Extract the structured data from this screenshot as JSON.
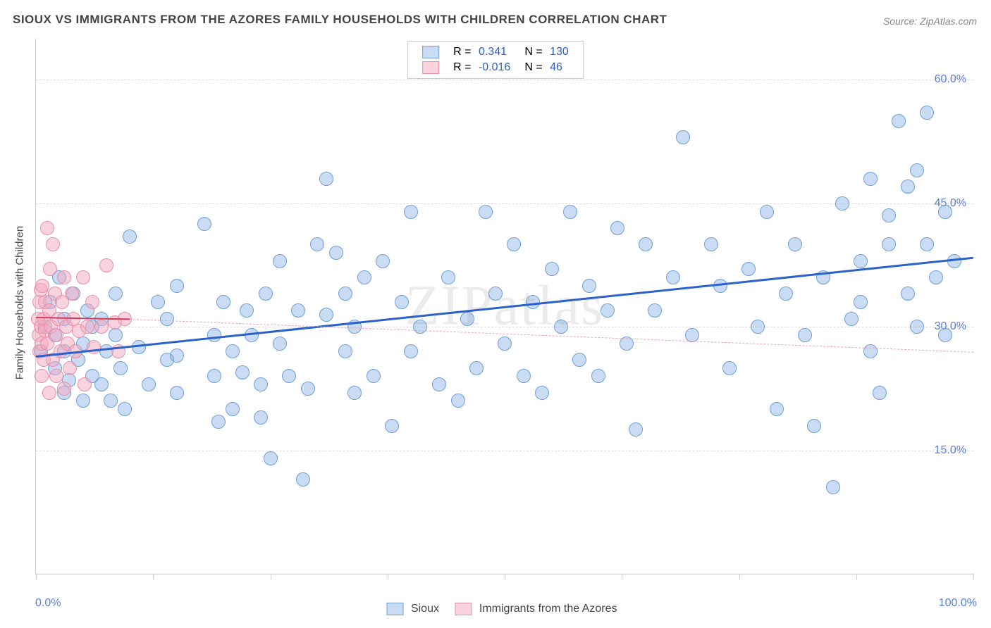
{
  "title": "SIOUX VS IMMIGRANTS FROM THE AZORES FAMILY HOUSEHOLDS WITH CHILDREN CORRELATION CHART",
  "source": "Source: ZipAtlas.com",
  "watermark": "ZIPatlas",
  "ylabel": "Family Households with Children",
  "chart": {
    "type": "scatter",
    "background_color": "#ffffff",
    "grid_color": "#dddddd",
    "border_color": "#cccccc",
    "xlim": [
      0,
      100
    ],
    "ylim": [
      0,
      65
    ],
    "xtick_positions": [
      0,
      12.5,
      25,
      37.5,
      50,
      62.5,
      75,
      87.5,
      100
    ],
    "xtick_labels": {
      "0": "0.0%",
      "100": "100.0%"
    },
    "ytick_positions": [
      15,
      30,
      45,
      60
    ],
    "ytick_labels": {
      "15": "15.0%",
      "30": "30.0%",
      "45": "45.0%",
      "60": "60.0%"
    },
    "tick_label_color": "#5a7fd6",
    "tick_fontsize": 16,
    "axis_label_color": "#444444",
    "axis_label_fontsize": 15,
    "marker_radius": 9,
    "marker_border_width": 1,
    "series": [
      {
        "name": "Sioux",
        "fill_color": "rgba(138,178,230,0.45)",
        "border_color": "#6f9fd8",
        "R": "0.341",
        "N": "130",
        "trend": {
          "x1": 0,
          "y1": 26.5,
          "x2": 100,
          "y2": 38.5,
          "color": "#2a62c9",
          "width": 3,
          "dash": false
        },
        "points": [
          [
            0.5,
            27
          ],
          [
            1,
            30
          ],
          [
            1.5,
            33
          ],
          [
            2,
            25
          ],
          [
            2,
            29
          ],
          [
            2.5,
            36
          ],
          [
            3,
            22
          ],
          [
            3,
            31
          ],
          [
            3.5,
            23.5
          ],
          [
            3,
            27
          ],
          [
            4,
            34
          ],
          [
            4.5,
            26
          ],
          [
            5,
            28
          ],
          [
            5,
            21
          ],
          [
            5.5,
            32
          ],
          [
            6,
            24
          ],
          [
            6,
            30
          ],
          [
            7,
            23
          ],
          [
            7,
            31
          ],
          [
            7.5,
            27
          ],
          [
            8,
            21
          ],
          [
            8.5,
            34
          ],
          [
            8.5,
            29
          ],
          [
            9,
            25
          ],
          [
            9.5,
            20
          ],
          [
            10,
            41
          ],
          [
            11,
            27.5
          ],
          [
            12,
            23
          ],
          [
            13,
            33
          ],
          [
            14,
            26
          ],
          [
            14,
            31
          ],
          [
            15,
            22
          ],
          [
            15,
            35
          ],
          [
            15,
            26.5
          ],
          [
            18,
            42.5
          ],
          [
            19,
            29
          ],
          [
            19,
            24
          ],
          [
            19.5,
            18.5
          ],
          [
            20,
            33
          ],
          [
            21,
            27
          ],
          [
            21,
            20
          ],
          [
            22,
            24.5
          ],
          [
            22.5,
            32
          ],
          [
            23,
            29
          ],
          [
            24,
            23
          ],
          [
            24,
            19
          ],
          [
            24.5,
            34
          ],
          [
            25,
            14
          ],
          [
            26,
            28
          ],
          [
            26,
            38
          ],
          [
            27,
            24
          ],
          [
            28,
            32
          ],
          [
            28.5,
            11.5
          ],
          [
            29,
            22.5
          ],
          [
            30,
            40
          ],
          [
            31,
            31.5
          ],
          [
            31,
            48
          ],
          [
            32,
            39
          ],
          [
            33,
            34
          ],
          [
            33,
            27
          ],
          [
            34,
            22
          ],
          [
            34,
            30
          ],
          [
            35,
            36
          ],
          [
            36,
            24
          ],
          [
            37,
            38
          ],
          [
            38,
            18
          ],
          [
            39,
            33
          ],
          [
            40,
            44
          ],
          [
            40,
            27
          ],
          [
            41,
            30
          ],
          [
            43,
            23
          ],
          [
            44,
            36
          ],
          [
            45,
            21
          ],
          [
            46,
            31
          ],
          [
            47,
            25
          ],
          [
            48,
            44
          ],
          [
            49,
            34
          ],
          [
            50,
            28
          ],
          [
            51,
            40
          ],
          [
            52,
            24
          ],
          [
            53,
            33
          ],
          [
            54,
            22
          ],
          [
            55,
            37
          ],
          [
            56,
            30
          ],
          [
            57,
            44
          ],
          [
            58,
            26
          ],
          [
            59,
            35
          ],
          [
            60,
            24
          ],
          [
            61,
            32
          ],
          [
            62,
            42
          ],
          [
            63,
            28
          ],
          [
            64,
            17.5
          ],
          [
            65,
            40
          ],
          [
            66,
            32
          ],
          [
            68,
            36
          ],
          [
            69,
            53
          ],
          [
            70,
            29
          ],
          [
            72,
            40
          ],
          [
            73,
            35
          ],
          [
            74,
            25
          ],
          [
            76,
            37
          ],
          [
            77,
            30
          ],
          [
            78,
            44
          ],
          [
            79,
            20
          ],
          [
            80,
            34
          ],
          [
            81,
            40
          ],
          [
            82,
            29
          ],
          [
            83,
            18
          ],
          [
            84,
            36
          ],
          [
            85,
            10.5
          ],
          [
            86,
            45
          ],
          [
            87,
            31
          ],
          [
            88,
            38
          ],
          [
            88,
            33
          ],
          [
            89,
            27
          ],
          [
            89,
            48
          ],
          [
            90,
            22
          ],
          [
            91,
            40
          ],
          [
            91,
            43.5
          ],
          [
            92,
            55
          ],
          [
            93,
            34
          ],
          [
            93,
            47
          ],
          [
            94,
            30
          ],
          [
            94,
            49
          ],
          [
            95,
            56
          ],
          [
            95,
            40
          ],
          [
            96,
            36
          ],
          [
            97,
            44
          ],
          [
            97,
            29
          ],
          [
            98,
            38
          ]
        ]
      },
      {
        "name": "Immigrants from the Azores",
        "fill_color": "rgba(244,168,190,0.5)",
        "border_color": "#e88fa8",
        "R": "-0.016",
        "N": "46",
        "trend_solid": {
          "x1": 0,
          "y1": 31.2,
          "x2": 10,
          "y2": 31.0,
          "color": "#d23b5a",
          "width": 2,
          "dash": false
        },
        "trend_dash": {
          "x1": 10,
          "y1": 31.0,
          "x2": 100,
          "y2": 27.0,
          "color": "#e9a3b2",
          "width": 1,
          "dash": true
        },
        "points": [
          [
            0.2,
            31
          ],
          [
            0.3,
            29
          ],
          [
            0.4,
            33
          ],
          [
            0.4,
            27
          ],
          [
            0.5,
            34.5
          ],
          [
            0.5,
            30
          ],
          [
            0.6,
            24
          ],
          [
            0.6,
            28
          ],
          [
            0.7,
            35
          ],
          [
            0.8,
            31
          ],
          [
            0.8,
            26
          ],
          [
            1.0,
            29.5
          ],
          [
            1.0,
            33
          ],
          [
            1.2,
            42
          ],
          [
            1.2,
            28
          ],
          [
            1.4,
            22
          ],
          [
            1.4,
            32
          ],
          [
            1.5,
            37
          ],
          [
            1.6,
            30
          ],
          [
            1.8,
            26
          ],
          [
            1.8,
            40
          ],
          [
            2.0,
            34
          ],
          [
            2.2,
            29
          ],
          [
            2.2,
            24
          ],
          [
            2.4,
            31
          ],
          [
            2.6,
            27
          ],
          [
            2.8,
            33
          ],
          [
            3.0,
            36
          ],
          [
            3.0,
            22.5
          ],
          [
            3.2,
            30
          ],
          [
            3.4,
            28
          ],
          [
            3.6,
            25
          ],
          [
            3.8,
            34
          ],
          [
            4.0,
            31
          ],
          [
            4.2,
            27
          ],
          [
            4.6,
            29.5
          ],
          [
            5.0,
            36
          ],
          [
            5.2,
            23
          ],
          [
            5.5,
            30
          ],
          [
            6.0,
            33
          ],
          [
            6.2,
            27.5
          ],
          [
            7.0,
            30
          ],
          [
            7.5,
            37.5
          ],
          [
            8.4,
            30.5
          ],
          [
            8.8,
            27
          ],
          [
            9.5,
            31
          ]
        ]
      }
    ]
  },
  "legend_top": {
    "r_label": "R =",
    "n_label": "N =",
    "value_color": "#2a62c9",
    "text_color": "#444444"
  },
  "legend_bottom": {
    "text_color": "#444444"
  }
}
